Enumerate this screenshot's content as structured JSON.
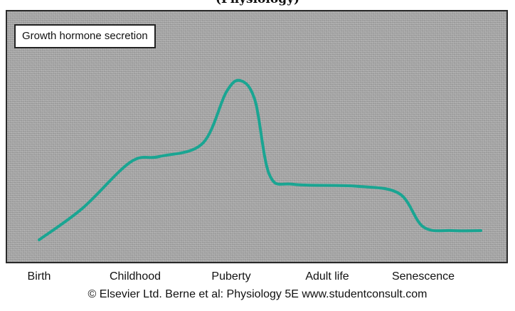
{
  "header_fragment": "(Physiology)",
  "credit": "© Elsevier Ltd. Berne et al: Physiology 5E www.studentconsult.com",
  "chart_data": {
    "type": "line",
    "title": "Growth hormone secretion",
    "xlabel": "",
    "ylabel": "",
    "grid": false,
    "y_ticks": false,
    "categories": [
      "Birth",
      "Childhood",
      "Puberty",
      "Adult life",
      "Senescence"
    ],
    "line_color": "#1aa592",
    "panel_color": "#a7a7a7",
    "ylim": [
      0,
      100
    ],
    "series": [
      {
        "x": [
          0,
          0.45,
          0.95,
          1.25,
          1.7,
          1.95,
          2.1,
          2.25,
          2.4,
          2.65,
          3.3,
          3.75,
          4.0,
          4.3,
          4.6
        ],
        "values": [
          5,
          22,
          47,
          50,
          57,
          85,
          91,
          80,
          40,
          35,
          34,
          30,
          12,
          10,
          10
        ]
      }
    ]
  }
}
